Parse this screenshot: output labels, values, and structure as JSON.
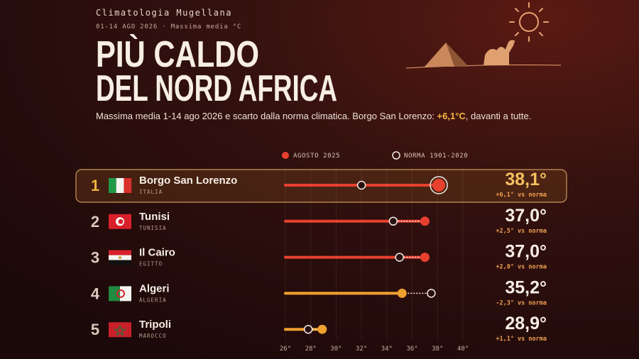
{
  "chart_data": {
    "type": "dumbbell",
    "kicker": "Climatologia Mugellana",
    "meta": "01-14 AGO 2026 · Massima media °C",
    "title_lines": [
      "PIÙ CALDO",
      "DEL NORD AFRICA"
    ],
    "subtitle_parts": [
      "Massima media 1-14 ago 2026 e scarto dalla norma climatica. Borgo San Lorenzo: ",
      "+6,1°C",
      ", davanti a tutte."
    ],
    "ranks": [
      1,
      2,
      3,
      4,
      5
    ],
    "categories": [
      "Borgo San Lorenzo",
      "Tunisi",
      "Il Cairo",
      "Algeri",
      "Tripoli"
    ],
    "countries": [
      "ITALIA",
      "TUNISIA",
      "EGITTO",
      "ALGERIA",
      "MAROCCO"
    ],
    "series": [
      {
        "name": "AGOSTO 2025",
        "color": "#e8402f",
        "colors": [
          "#e8402f",
          "#e8402f",
          "#e8402f",
          "#f0a030",
          "#f0a030"
        ],
        "values": [
          38.1,
          37.0,
          37.0,
          35.2,
          28.9
        ],
        "value_labels": [
          "38,1°",
          "37,0°",
          "37,0°",
          "35,2°",
          "28,9°"
        ]
      },
      {
        "name": "NORMA 1901-2020",
        "color": "#f3ece4",
        "values": [
          32.0,
          34.5,
          35.0,
          37.5,
          27.8
        ]
      }
    ],
    "delta_labels": [
      "+6,1° vs norma",
      "+2,5° vs norma",
      "+2,0° vs norma",
      "-2,3° vs norma",
      "+1,1° vs norma"
    ],
    "xlim": [
      26,
      40
    ],
    "xticks": [
      {
        "value": 26,
        "label": "26°"
      },
      {
        "value": 28,
        "label": "28°"
      },
      {
        "value": 30,
        "label": "30°"
      },
      {
        "value": 32,
        "label": "32°"
      },
      {
        "value": 34,
        "label": "34°"
      },
      {
        "value": 36,
        "label": "36°"
      },
      {
        "value": 38,
        "label": "38°"
      },
      {
        "value": 40,
        "label": "40°"
      }
    ],
    "grid": true
  }
}
